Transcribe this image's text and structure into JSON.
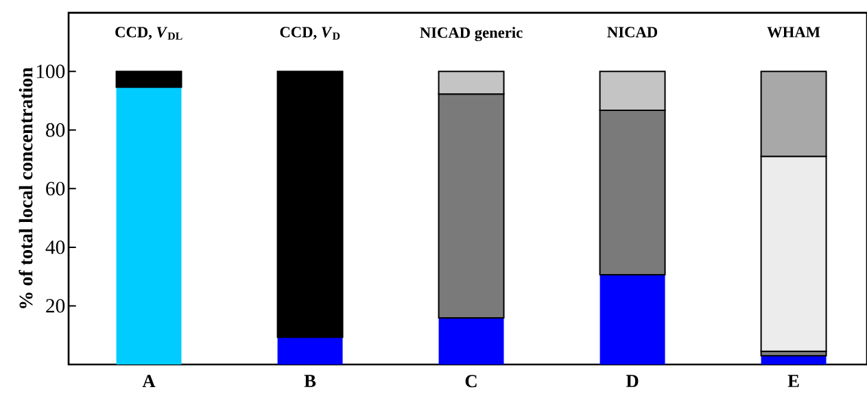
{
  "chart_data": {
    "type": "bar",
    "stacked": true,
    "ylabel": "% of total local concentration",
    "categories": [
      "A",
      "B",
      "C",
      "D",
      "E"
    ],
    "ylim": [
      0,
      120
    ],
    "yticks": [
      20,
      40,
      60,
      80,
      100
    ],
    "series": [
      {
        "color": "#00ccff",
        "values": [
          94.6,
          null,
          null,
          null,
          null
        ]
      },
      {
        "color": "#0000ff",
        "values": [
          null,
          9.3,
          15.9,
          30.6,
          3.0
        ]
      },
      {
        "color": "#808080",
        "values": [
          null,
          null,
          null,
          null,
          1.5
        ]
      },
      {
        "color": "#7a7a7a",
        "values": [
          null,
          null,
          76.4,
          56.1,
          null
        ]
      },
      {
        "color": "#ececec",
        "values": [
          null,
          null,
          null,
          null,
          66.5
        ]
      },
      {
        "color": "#c4c4c4",
        "values": [
          null,
          null,
          7.7,
          13.3,
          null
        ]
      },
      {
        "color": "#a8a8a8",
        "values": [
          null,
          null,
          null,
          null,
          29.0
        ]
      },
      {
        "color": "#000000",
        "values": [
          5.4,
          90.7,
          null,
          null,
          null
        ]
      }
    ],
    "annotations": [
      "CCD, *V*$_{DL}$",
      "CCD, *V*$_{D}$",
      "NICAD generic",
      "NICAD",
      "WHAM"
    ]
  }
}
